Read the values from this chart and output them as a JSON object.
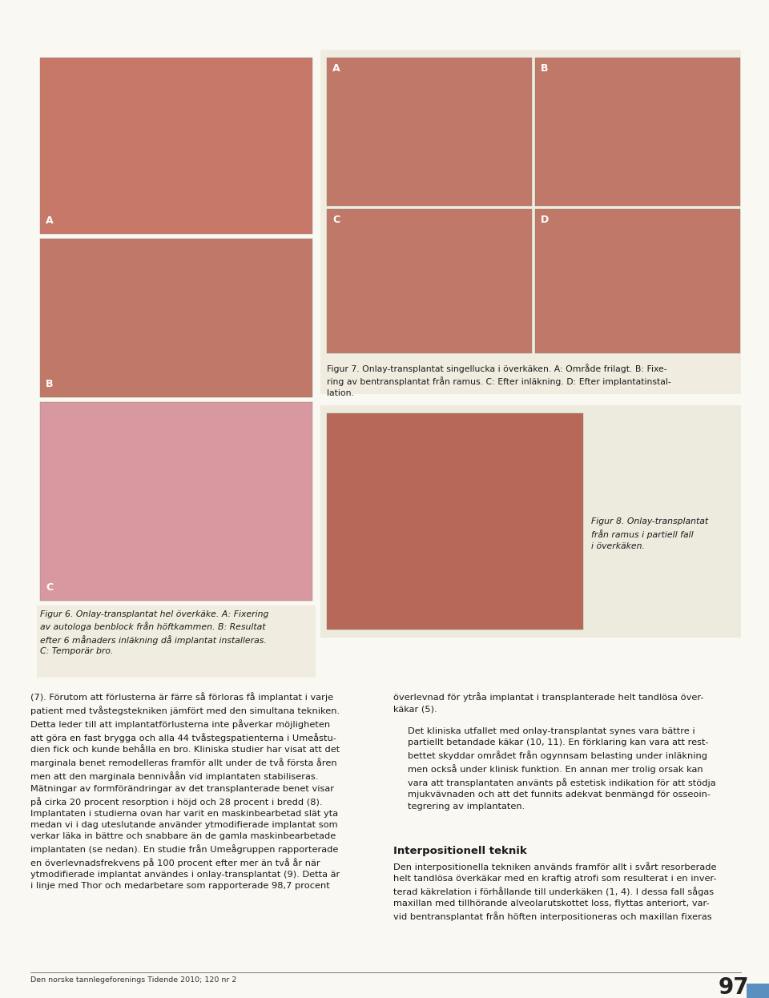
{
  "page_bg": "#faf8f2",
  "panel_bg": "#f0ede0",
  "caption_bg": "#f0ede0",
  "fig8_panel_bg": "#edeade",
  "page_width": 9.6,
  "page_height": 12.46,
  "fig7_caption": "Figur 7. Onlay-transplantat singellucka i överkäken. A: Område frilagt. B: Fixe-\nring av bentransplantat från ramus. C: Efter inläkning. D: Efter implantatinstal-\nlation.",
  "fig6_caption": "Figur 6. Onlay-transplantat hel överkäke. A: Fixering\nav autologa benblock från höftkammen. B: Resultat\nefter 6 månaders inläkning då implantat installeras.\nC: Temporär bro.",
  "fig8_caption": "Figur 8. Onlay-transplantat\nfrån ramus i partiell fall\ni överkäken.",
  "body_text_left": "(7). Förutom att förlusterna är färre så förloras få implantat i varje\npatient med tvåstegstekniken jämfört med den simultana tekniken.\nDetta leder till att implantatförlusterna inte påverkar möjligheten\natt göra en fast brygga och alla 44 tvåstegspatienterna i Umeåstu-\ndien fick och kunde behålla en bro. Kliniska studier har visat att det\nmarginala benet remodelleras framför allt under de två första åren\nmen att den marginala bennivåån vid implantaten stabiliseras.\nMätningar av formförändringar av det transplanterade benet visar\npå cirka 20 procent resorption i höjd och 28 procent i bredd (8).\nImplantaten i studierna ovan har varit en maskinbearbetad slät yta\nmedan vi i dag uteslutande använder ytmodifierade implantat som\nverkar läka in bättre och snabbare än de gamla maskinbearbetade\nimplantaten (se nedan). En studie från Umeågruppen rapporterade\nen överlevnadsfrekvens på 100 procent efter mer än två år när\nytmodifierade implantat användes i onlay-transplantat (9). Detta är\ni linje med Thor och medarbetare som rapporterade 98,7 procent",
  "body_text_right_top": "överlevnad för ytråa implantat i transplanterade helt tandlösa över-\nkäkar (5).",
  "body_text_right_mid": "Det kliniska utfallet med onlay-transplantat synes vara bättre i\npartiellt betandade käkar (10, 11). En förklaring kan vara att rest-\nbettet skyddar området från ogynnsam belasting under inläkning\nmen också under klinisk funktion. En annan mer trolig orsak kan\nvara att transplantaten använts på estetisk indikation för att stödja\nmjukvävnaden och att det funnits adekvat benmängd för osseoin-\ntegrering av implantaten.",
  "section_heading": "Interpositionell teknik",
  "section_text": "Den interpositionella tekniken används framför allt i svårt resorberade\nhelt tandlösa överkäkar med en kraftig atrofi som resulterat i en inver-\nterad käkrelation i förhållande till underkäken (1, 4). I dessa fall sågas\nmaxillan med tillhörande alveolarutskottet loss, flyttas anteriort, var-\nvid bentransplantat från höften interpositioneras och maxillan fixeras",
  "footer_text": "Den norske tannlegeforenings Tidende 2010; 120 nr 2",
  "page_number": "97",
  "caption_font_size": 7.8,
  "body_font_size": 8.2,
  "heading_font_size": 9.5,
  "footer_font_size": 6.8,
  "img_A_color": "#c87868",
  "img_B_color": "#c07868",
  "img_C_color": "#d898a0",
  "img_right_color": "#c07868",
  "img_8_color": "#b86858",
  "blue_tab_color": "#5b8fc0"
}
